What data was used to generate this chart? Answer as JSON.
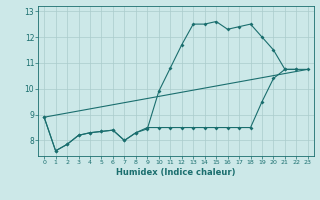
{
  "title": "",
  "xlabel": "Humidex (Indice chaleur)",
  "background_color": "#cce8e8",
  "grid_color": "#aacccc",
  "line_color": "#1a6e6e",
  "xlim": [
    -0.5,
    23.5
  ],
  "ylim": [
    7.4,
    13.2
  ],
  "yticks": [
    8,
    9,
    10,
    11,
    12,
    13
  ],
  "xticks": [
    0,
    1,
    2,
    3,
    4,
    5,
    6,
    7,
    8,
    9,
    10,
    11,
    12,
    13,
    14,
    15,
    16,
    17,
    18,
    19,
    20,
    21,
    22,
    23
  ],
  "series1_x": [
    0,
    1,
    2,
    3,
    4,
    5,
    6,
    7,
    8,
    9,
    10,
    11,
    12,
    13,
    14,
    15,
    16,
    17,
    18,
    19,
    20,
    21,
    22
  ],
  "series1_y": [
    8.9,
    7.6,
    7.85,
    8.2,
    8.3,
    8.35,
    8.4,
    8.0,
    8.3,
    8.45,
    9.9,
    10.8,
    11.7,
    12.5,
    12.5,
    12.6,
    12.3,
    12.4,
    12.5,
    12.0,
    11.5,
    10.75,
    10.75
  ],
  "series2_x": [
    0,
    1,
    2,
    3,
    4,
    5,
    6,
    7,
    8,
    9,
    10,
    11,
    12,
    13,
    14,
    15,
    16,
    17,
    18,
    19,
    20,
    21,
    22,
    23
  ],
  "series2_y": [
    8.9,
    7.6,
    7.85,
    8.2,
    8.3,
    8.35,
    8.4,
    8.0,
    8.3,
    8.5,
    8.5,
    8.5,
    8.5,
    8.5,
    8.5,
    8.5,
    8.5,
    8.5,
    8.5,
    9.5,
    10.4,
    10.75,
    10.75,
    10.75
  ],
  "series3_x": [
    0,
    23
  ],
  "series3_y": [
    8.9,
    10.75
  ]
}
